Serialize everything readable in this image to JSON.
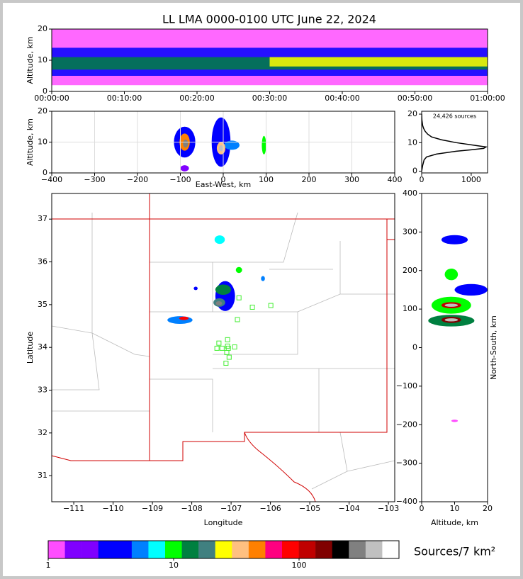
{
  "chart_data": [
    {
      "type": "density-time",
      "title": "LL LMA 0000-0100 UTC June 22, 2024",
      "ylabel": "Altitude, km",
      "xlim": [
        0,
        60
      ],
      "xticks": [
        {
          "value": 0,
          "label": "00:00:00"
        },
        {
          "value": 10,
          "label": "00:10:00"
        },
        {
          "value": 20,
          "label": "00:20:00"
        },
        {
          "value": 30,
          "label": "00:30:00"
        },
        {
          "value": 40,
          "label": "00:40:00"
        },
        {
          "value": 50,
          "label": "00:50:00"
        },
        {
          "value": 60,
          "label": "01:00:00"
        }
      ],
      "ylim": [
        0,
        20
      ],
      "yticks": [
        0,
        10,
        20
      ],
      "grid": false,
      "bands": [
        {
          "t0": 0,
          "t1": 60,
          "alt0": 2,
          "alt1": 20,
          "value": 1
        },
        {
          "t0": 0,
          "t1": 60,
          "alt0": 5,
          "alt1": 14,
          "value": 4
        },
        {
          "t0": 0,
          "t1": 60,
          "alt0": 7,
          "alt1": 11,
          "value": 12
        },
        {
          "t0": 30,
          "t1": 60,
          "alt0": 8,
          "alt1": 11,
          "value": 25
        }
      ]
    },
    {
      "type": "density",
      "xlabel": "East-West, km",
      "ylabel": "Altitude, km",
      "xlim": [
        -400,
        400
      ],
      "xticks": [
        {
          "value": -400,
          "label": "−400"
        },
        {
          "value": -300,
          "label": "−300"
        },
        {
          "value": -200,
          "label": "−200"
        },
        {
          "value": -100,
          "label": "−100"
        },
        0,
        100,
        200,
        300,
        400
      ],
      "ylim": [
        0,
        20
      ],
      "yticks": [
        0,
        10,
        20
      ],
      "grid": true,
      "cells": [
        {
          "x": -90,
          "y": 10,
          "rx": 25,
          "ry": 5,
          "value": 4
        },
        {
          "x": -90,
          "y": 1.5,
          "rx": 10,
          "ry": 1,
          "value": 2
        },
        {
          "x": -5,
          "y": 10,
          "rx": 22,
          "ry": 8,
          "value": 4
        },
        {
          "x": 20,
          "y": 9,
          "rx": 18,
          "ry": 1.5,
          "value": 5
        },
        {
          "x": 95,
          "y": 9,
          "rx": 5,
          "ry": 3,
          "value": 10
        },
        {
          "x": -90,
          "y": 10,
          "rx": 12,
          "ry": 2.8,
          "value": 40
        },
        {
          "x": -5,
          "y": 8,
          "rx": 10,
          "ry": 2,
          "value": 30
        },
        {
          "x": -88,
          "y": 9.5,
          "rx": 6,
          "ry": 1.3,
          "value": 300
        },
        {
          "x": -5,
          "y": 8,
          "rx": 5,
          "ry": 1,
          "value": 400
        }
      ]
    },
    {
      "type": "line",
      "annotation": "24,426 sources",
      "xlim": [
        0,
        1330
      ],
      "xticks": [
        0,
        1000
      ],
      "ylim": [
        -0.6,
        21
      ],
      "yticks": [
        0,
        10,
        20
      ],
      "grid": false,
      "x": [
        0,
        20,
        50,
        100,
        300,
        700,
        1000,
        1250,
        1300,
        1100,
        700,
        400,
        200,
        120,
        70,
        40,
        20,
        5,
        0
      ],
      "y": [
        0,
        2,
        4,
        5,
        6,
        7,
        7.5,
        8,
        8.5,
        9,
        10,
        11,
        12,
        13,
        14,
        15,
        16,
        18,
        20
      ]
    },
    {
      "type": "map",
      "xlabel": "Longitude",
      "ylabel": "Latitude",
      "xlim": [
        -111.56,
        -102.84
      ],
      "xticks": [
        {
          "value": -111,
          "label": "−111"
        },
        {
          "value": -110,
          "label": "−110"
        },
        {
          "value": -109,
          "label": "−109"
        },
        {
          "value": -108,
          "label": "−108"
        },
        {
          "value": -107,
          "label": "−107"
        },
        {
          "value": -106,
          "label": "−106"
        },
        {
          "value": -105,
          "label": "−105"
        },
        {
          "value": -104,
          "label": "−104"
        },
        {
          "value": -103,
          "label": "−103"
        }
      ],
      "ylim": [
        30.39,
        37.6
      ],
      "yticks": [
        31,
        32,
        33,
        34,
        35,
        36,
        37
      ],
      "grid": false,
      "cells": [
        {
          "x": -107.15,
          "y": 35.2,
          "rx": 0.25,
          "ry": 0.35,
          "value": 3
        },
        {
          "x": -108.3,
          "y": 34.64,
          "rx": 0.32,
          "ry": 0.09,
          "value": 5
        },
        {
          "x": -107.29,
          "y": 36.52,
          "rx": 0.13,
          "ry": 0.1,
          "value": 8
        },
        {
          "x": -106.8,
          "y": 35.81,
          "rx": 0.08,
          "ry": 0.07,
          "value": 10
        },
        {
          "x": -106.19,
          "y": 35.61,
          "rx": 0.05,
          "ry": 0.06,
          "value": 5
        },
        {
          "x": -107.9,
          "y": 35.38,
          "rx": 0.05,
          "ry": 0.04,
          "value": 3
        },
        {
          "x": -107.2,
          "y": 35.35,
          "rx": 0.2,
          "ry": 0.12,
          "value": 15
        },
        {
          "x": -107.3,
          "y": 35.05,
          "rx": 0.15,
          "ry": 0.1,
          "value": 20
        },
        {
          "x": -108.2,
          "y": 34.68,
          "rx": 0.12,
          "ry": 0.04,
          "value": 80
        },
        {
          "x": -107.31,
          "y": 35.03,
          "rx": 0.08,
          "ry": 0.05,
          "value": 300
        }
      ],
      "stations": {
        "lon": [
          -106.8,
          -106.46,
          -105.99,
          -106.84,
          -107.09,
          -107.31,
          -107.09,
          -107.36,
          -107.23,
          -107.07,
          -106.91,
          -107.11,
          -107.05,
          -107.13
        ],
        "lat": [
          35.16,
          34.94,
          34.98,
          34.65,
          34.18,
          34.1,
          34.03,
          33.98,
          33.98,
          33.98,
          34.01,
          33.88,
          33.77,
          33.63
        ]
      }
    },
    {
      "type": "density",
      "xlabel": "Altitude, km",
      "ylabel": "North-South, km",
      "xlim": [
        0,
        20
      ],
      "xticks": [
        0,
        10,
        20
      ],
      "ylim": [
        -400,
        400
      ],
      "yticks": [
        {
          "value": -400,
          "label": "−400"
        },
        {
          "value": -300,
          "label": "−300"
        },
        {
          "value": -200,
          "label": "−200"
        },
        {
          "value": -100,
          "label": "−100"
        },
        0,
        100,
        200,
        300,
        400
      ],
      "grid": false,
      "cells": [
        {
          "x": 10,
          "y": 280,
          "rx": 4,
          "ry": 12,
          "value": 3
        },
        {
          "x": 15,
          "y": 150,
          "rx": 5,
          "ry": 15,
          "value": 3
        },
        {
          "x": 9,
          "y": 190,
          "rx": 2,
          "ry": 15,
          "value": 10
        },
        {
          "x": 9,
          "y": 110,
          "rx": 6,
          "ry": 22,
          "value": 10
        },
        {
          "x": 9,
          "y": 70,
          "rx": 7,
          "ry": 15,
          "value": 12
        },
        {
          "x": 10,
          "y": -190,
          "rx": 1,
          "ry": 3,
          "value": 1
        },
        {
          "x": 9,
          "y": 110,
          "rx": 3,
          "ry": 8,
          "value": 100
        },
        {
          "x": 9,
          "y": 72,
          "rx": 3,
          "ry": 8,
          "value": 150
        },
        {
          "x": 9,
          "y": 110,
          "rx": 2,
          "ry": 4,
          "value": 400
        },
        {
          "x": 9,
          "y": 72,
          "rx": 2,
          "ry": 4,
          "value": 400
        }
      ]
    },
    {
      "type": "colorbar",
      "label": "Sources/7 km²",
      "log": true,
      "lim": [
        1,
        626
      ],
      "ticks": [
        1,
        10,
        100
      ],
      "colors": [
        "#ff4dff",
        "#8000ff",
        "#8000ff",
        "#0000ff",
        "#0000ff",
        "#0080ff",
        "#00ffff",
        "#00ff00",
        "#008040",
        "#408080",
        "#ffff00",
        "#ffc080",
        "#ff8000",
        "#ff0080",
        "#ff0000",
        "#c00000",
        "#800000",
        "#000000",
        "#808080",
        "#c0c0c0",
        "#ffffff"
      ]
    }
  ]
}
